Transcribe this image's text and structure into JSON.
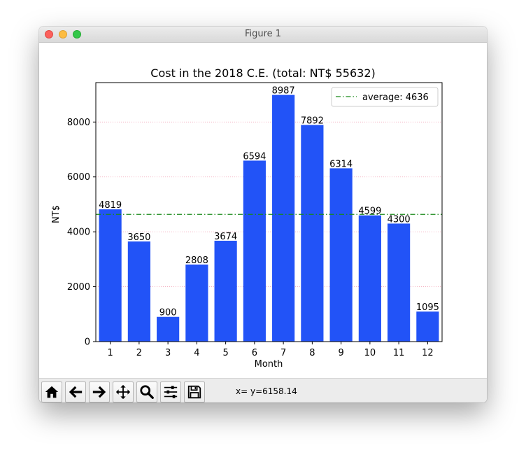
{
  "window": {
    "title": "Figure 1"
  },
  "toolbar": {
    "buttons": [
      {
        "name": "home-button",
        "icon": "home-icon"
      },
      {
        "name": "back-button",
        "icon": "arrow-left-icon"
      },
      {
        "name": "forward-button",
        "icon": "arrow-right-icon"
      },
      {
        "name": "pan-button",
        "icon": "move-icon"
      },
      {
        "name": "zoom-button",
        "icon": "magnifier-icon"
      },
      {
        "name": "configure-subplots-button",
        "icon": "sliders-icon"
      },
      {
        "name": "save-button",
        "icon": "floppy-disk-icon"
      }
    ],
    "coords": "x= y=6158.14"
  },
  "chart_data": {
    "type": "bar",
    "title": "Cost in the 2018 C.E.  (total: NT$ 55632)",
    "xlabel": "Month",
    "ylabel": "NT$",
    "categories": [
      "1",
      "2",
      "3",
      "4",
      "5",
      "6",
      "7",
      "8",
      "9",
      "10",
      "11",
      "12"
    ],
    "values": [
      4819,
      3650,
      900,
      2808,
      3674,
      6594,
      8987,
      7892,
      6314,
      4599,
      4300,
      1095
    ],
    "data_labels": [
      "4819",
      "3650",
      "900",
      "2808",
      "3674",
      "6594",
      "8987",
      "7892",
      "6314",
      "4599",
      "4300",
      "1095"
    ],
    "ylim": [
      0,
      9436
    ],
    "yticks": [
      0,
      2000,
      4000,
      6000,
      8000
    ],
    "ytick_labels": [
      "0",
      "2000",
      "4000",
      "6000",
      "8000"
    ],
    "grid": {
      "axis": "y",
      "style": "dotted",
      "color": "#f2a5b8"
    },
    "bar_color": "#2253f7",
    "average": {
      "value": 4636,
      "label": "average: 4636",
      "color": "#1a8a1a",
      "style": "dashdot"
    },
    "legend": {
      "position": "top-right",
      "entries": [
        "average: 4636"
      ]
    }
  }
}
